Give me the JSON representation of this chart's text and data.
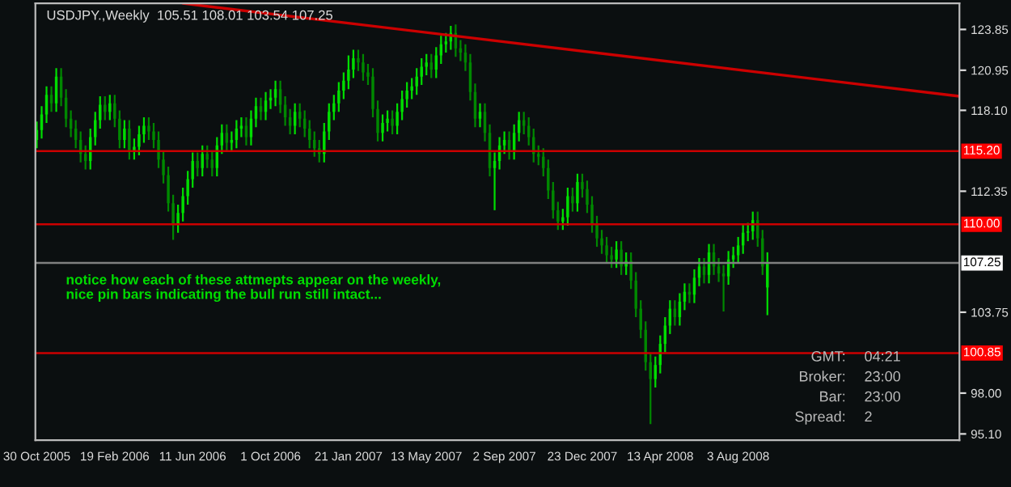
{
  "chart_data": {
    "type": "candlestick",
    "title": "USDJPY.,Weekly  105.51 108.01 103.54 107.25",
    "x": [
      "2005-10-30",
      "2005-11-06",
      "2005-11-13",
      "2005-11-20",
      "2005-11-27",
      "2005-12-04",
      "2005-12-11",
      "2005-12-18",
      "2005-12-25",
      "2006-01-01",
      "2006-01-08",
      "2006-01-15",
      "2006-01-22",
      "2006-01-29",
      "2006-02-05",
      "2006-02-12",
      "2006-02-19",
      "2006-02-26",
      "2006-03-05",
      "2006-03-12",
      "2006-03-19",
      "2006-03-26",
      "2006-04-02",
      "2006-04-09",
      "2006-04-16",
      "2006-04-23",
      "2006-04-30",
      "2006-05-07",
      "2006-05-14",
      "2006-05-21",
      "2006-05-28",
      "2006-06-04",
      "2006-06-11",
      "2006-06-18",
      "2006-06-25",
      "2006-07-02",
      "2006-07-09",
      "2006-07-16",
      "2006-07-23",
      "2006-07-30",
      "2006-08-06",
      "2006-08-13",
      "2006-08-20",
      "2006-08-27",
      "2006-09-03",
      "2006-09-10",
      "2006-09-17",
      "2006-09-24",
      "2006-10-01",
      "2006-10-08",
      "2006-10-15",
      "2006-10-22",
      "2006-10-29",
      "2006-11-05",
      "2006-11-12",
      "2006-11-19",
      "2006-11-26",
      "2006-12-03",
      "2006-12-10",
      "2006-12-17",
      "2006-12-24",
      "2006-12-31",
      "2007-01-07",
      "2007-01-14",
      "2007-01-21",
      "2007-01-28",
      "2007-02-04",
      "2007-02-11",
      "2007-02-18",
      "2007-02-25",
      "2007-03-04",
      "2007-03-11",
      "2007-03-18",
      "2007-03-25",
      "2007-04-01",
      "2007-04-08",
      "2007-04-15",
      "2007-04-22",
      "2007-04-29",
      "2007-05-06",
      "2007-05-13",
      "2007-05-20",
      "2007-05-27",
      "2007-06-03",
      "2007-06-10",
      "2007-06-17",
      "2007-06-24",
      "2007-07-01",
      "2007-07-08",
      "2007-07-15",
      "2007-07-22",
      "2007-07-29",
      "2007-08-05",
      "2007-08-12",
      "2007-08-19",
      "2007-08-26",
      "2007-09-02",
      "2007-09-09",
      "2007-09-16",
      "2007-09-23",
      "2007-09-30",
      "2007-10-07",
      "2007-10-14",
      "2007-10-21",
      "2007-10-28",
      "2007-11-04",
      "2007-11-11",
      "2007-11-18",
      "2007-11-25",
      "2007-12-02",
      "2007-12-09",
      "2007-12-16",
      "2007-12-23",
      "2007-12-30",
      "2008-01-06",
      "2008-01-13",
      "2008-01-20",
      "2008-01-27",
      "2008-02-03",
      "2008-02-10",
      "2008-02-17",
      "2008-02-24",
      "2008-03-02",
      "2008-03-09",
      "2008-03-16",
      "2008-03-23",
      "2008-03-30",
      "2008-04-06",
      "2008-04-13",
      "2008-04-20",
      "2008-04-27",
      "2008-05-04",
      "2008-05-11",
      "2008-05-18",
      "2008-05-25",
      "2008-06-01",
      "2008-06-08",
      "2008-06-15",
      "2008-06-22",
      "2008-06-29",
      "2008-07-06",
      "2008-07-13",
      "2008-07-20",
      "2008-07-27",
      "2008-08-03",
      "2008-08-10",
      "2008-08-17",
      "2008-08-24",
      "2008-08-31",
      "2008-09-07",
      "2008-09-14"
    ],
    "ohlc": [
      [
        116.0,
        117.3,
        115.4,
        116.7
      ],
      [
        116.7,
        118.4,
        116.1,
        117.8
      ],
      [
        117.8,
        119.8,
        117.2,
        119.2
      ],
      [
        119.2,
        119.8,
        118.0,
        118.6
      ],
      [
        118.6,
        121.1,
        118.0,
        120.5
      ],
      [
        120.5,
        121.1,
        118.4,
        119.0
      ],
      [
        119.0,
        119.6,
        116.9,
        117.5
      ],
      [
        117.5,
        118.1,
        116.2,
        116.8
      ],
      [
        116.8,
        117.4,
        115.4,
        116.0
      ],
      [
        116.0,
        116.6,
        114.4,
        115.0
      ],
      [
        115.0,
        115.6,
        113.9,
        114.5
      ],
      [
        114.5,
        116.8,
        113.9,
        116.2
      ],
      [
        116.2,
        118.0,
        115.6,
        117.4
      ],
      [
        117.4,
        119.1,
        116.8,
        118.5
      ],
      [
        118.5,
        119.1,
        117.4,
        118.0
      ],
      [
        118.0,
        119.2,
        117.4,
        118.6
      ],
      [
        118.6,
        119.2,
        116.9,
        117.5
      ],
      [
        117.5,
        118.1,
        115.4,
        116.0
      ],
      [
        116.0,
        117.4,
        115.4,
        116.8
      ],
      [
        116.8,
        117.4,
        114.6,
        115.2
      ],
      [
        115.2,
        116.1,
        114.6,
        115.5
      ],
      [
        115.5,
        117.0,
        114.9,
        116.4
      ],
      [
        116.4,
        117.6,
        115.8,
        117.0
      ],
      [
        117.0,
        117.6,
        116.0,
        116.6
      ],
      [
        116.6,
        117.2,
        115.4,
        116.0
      ],
      [
        116.0,
        116.6,
        114.0,
        114.6
      ],
      [
        114.6,
        115.2,
        112.9,
        113.5
      ],
      [
        113.5,
        114.1,
        110.9,
        111.5
      ],
      [
        111.5,
        112.1,
        108.9,
        110.0
      ],
      [
        110.0,
        111.4,
        109.4,
        110.8
      ],
      [
        110.8,
        112.6,
        110.2,
        112.0
      ],
      [
        112.0,
        113.8,
        111.4,
        113.2
      ],
      [
        113.2,
        115.1,
        112.6,
        114.5
      ],
      [
        114.5,
        115.1,
        113.4,
        114.0
      ],
      [
        114.0,
        115.6,
        113.4,
        115.0
      ],
      [
        115.0,
        115.6,
        114.0,
        114.6
      ],
      [
        114.6,
        115.2,
        113.4,
        114.0
      ],
      [
        114.0,
        116.2,
        113.4,
        115.6
      ],
      [
        115.6,
        117.1,
        115.0,
        116.5
      ],
      [
        116.5,
        117.1,
        115.2,
        115.8
      ],
      [
        115.8,
        116.6,
        115.2,
        116.0
      ],
      [
        116.0,
        117.4,
        115.4,
        116.8
      ],
      [
        116.8,
        117.6,
        116.2,
        117.0
      ],
      [
        117.0,
        117.6,
        115.6,
        116.2
      ],
      [
        116.2,
        118.1,
        115.6,
        117.5
      ],
      [
        117.5,
        119.0,
        116.9,
        118.4
      ],
      [
        118.4,
        119.0,
        117.4,
        118.0
      ],
      [
        118.0,
        119.4,
        117.4,
        118.8
      ],
      [
        118.8,
        119.6,
        118.2,
        119.0
      ],
      [
        119.0,
        120.2,
        118.4,
        119.6
      ],
      [
        119.6,
        120.2,
        117.9,
        118.5
      ],
      [
        118.5,
        119.1,
        117.0,
        117.6
      ],
      [
        117.6,
        118.2,
        116.4,
        117.0
      ],
      [
        117.0,
        118.6,
        116.4,
        118.0
      ],
      [
        118.0,
        118.6,
        116.9,
        117.5
      ],
      [
        117.5,
        118.1,
        116.2,
        116.8
      ],
      [
        116.8,
        117.4,
        115.4,
        116.0
      ],
      [
        116.0,
        116.6,
        114.8,
        115.4
      ],
      [
        115.4,
        116.0,
        114.4,
        115.0
      ],
      [
        115.0,
        117.2,
        114.4,
        116.6
      ],
      [
        116.6,
        118.6,
        116.0,
        118.0
      ],
      [
        118.0,
        119.2,
        117.4,
        118.6
      ],
      [
        118.6,
        120.1,
        118.0,
        119.5
      ],
      [
        119.5,
        120.8,
        118.9,
        120.2
      ],
      [
        120.2,
        122.0,
        119.6,
        121.0
      ],
      [
        121.0,
        122.4,
        120.4,
        121.8
      ],
      [
        121.8,
        122.4,
        120.9,
        121.5
      ],
      [
        121.5,
        122.1,
        120.2,
        120.8
      ],
      [
        120.8,
        121.4,
        119.9,
        120.5
      ],
      [
        120.5,
        121.1,
        117.6,
        118.2
      ],
      [
        118.2,
        118.8,
        115.9,
        116.5
      ],
      [
        116.5,
        117.8,
        115.9,
        117.2
      ],
      [
        117.2,
        118.1,
        116.6,
        117.5
      ],
      [
        117.5,
        118.1,
        116.4,
        117.0
      ],
      [
        117.0,
        118.6,
        116.4,
        118.0
      ],
      [
        118.0,
        119.5,
        117.4,
        118.9
      ],
      [
        118.9,
        120.1,
        118.3,
        119.5
      ],
      [
        119.5,
        120.4,
        118.9,
        119.8
      ],
      [
        119.8,
        121.1,
        119.2,
        120.5
      ],
      [
        120.5,
        121.8,
        119.9,
        121.2
      ],
      [
        121.2,
        122.1,
        120.6,
        121.5
      ],
      [
        121.5,
        122.1,
        120.4,
        121.0
      ],
      [
        121.0,
        122.6,
        120.4,
        122.0
      ],
      [
        122.0,
        123.4,
        121.4,
        122.8
      ],
      [
        122.8,
        123.6,
        122.2,
        123.0
      ],
      [
        123.0,
        124.1,
        122.4,
        123.6
      ],
      [
        123.6,
        124.2,
        121.9,
        122.5
      ],
      [
        122.5,
        123.1,
        121.6,
        122.2
      ],
      [
        122.2,
        122.8,
        120.9,
        121.5
      ],
      [
        121.5,
        122.1,
        118.8,
        119.4
      ],
      [
        119.4,
        120.0,
        116.9,
        117.5
      ],
      [
        117.5,
        118.6,
        116.9,
        118.0
      ],
      [
        118.0,
        118.6,
        115.9,
        116.5
      ],
      [
        116.5,
        117.1,
        113.4,
        114.0
      ],
      [
        114.0,
        115.1,
        111.0,
        114.5
      ],
      [
        114.5,
        116.2,
        113.9,
        115.6
      ],
      [
        115.6,
        116.6,
        115.0,
        116.0
      ],
      [
        116.0,
        116.6,
        114.6,
        115.2
      ],
      [
        115.2,
        117.1,
        114.6,
        116.5
      ],
      [
        116.5,
        118.0,
        115.9,
        117.4
      ],
      [
        117.4,
        118.0,
        116.4,
        117.0
      ],
      [
        117.0,
        117.6,
        115.6,
        116.2
      ],
      [
        116.2,
        116.8,
        114.4,
        115.0
      ],
      [
        115.0,
        115.6,
        114.2,
        114.8
      ],
      [
        114.8,
        115.4,
        113.4,
        114.0
      ],
      [
        114.0,
        114.6,
        111.8,
        112.4
      ],
      [
        112.4,
        113.0,
        110.4,
        111.0
      ],
      [
        111.0,
        111.6,
        109.6,
        110.2
      ],
      [
        110.2,
        111.1,
        109.6,
        110.5
      ],
      [
        110.5,
        112.6,
        109.9,
        112.0
      ],
      [
        112.0,
        112.6,
        110.9,
        111.5
      ],
      [
        111.5,
        113.6,
        110.9,
        113.0
      ],
      [
        113.0,
        113.6,
        111.9,
        112.5
      ],
      [
        112.5,
        113.1,
        110.8,
        111.4
      ],
      [
        111.4,
        112.0,
        109.4,
        110.0
      ],
      [
        110.0,
        110.6,
        108.4,
        109.0
      ],
      [
        109.0,
        109.6,
        107.9,
        108.5
      ],
      [
        108.5,
        109.1,
        107.2,
        107.8
      ],
      [
        107.8,
        108.4,
        106.9,
        107.5
      ],
      [
        107.5,
        108.8,
        106.9,
        108.2
      ],
      [
        108.2,
        108.8,
        106.4,
        107.0
      ],
      [
        107.0,
        108.0,
        106.4,
        107.4
      ],
      [
        107.4,
        108.0,
        105.4,
        106.0
      ],
      [
        106.0,
        106.6,
        103.4,
        104.0
      ],
      [
        104.0,
        104.6,
        101.9,
        102.5
      ],
      [
        102.5,
        103.1,
        99.6,
        100.2
      ],
      [
        100.2,
        100.8,
        95.8,
        99.0
      ],
      [
        99.0,
        100.6,
        98.4,
        100.0
      ],
      [
        100.0,
        102.1,
        99.4,
        101.5
      ],
      [
        101.5,
        103.4,
        100.9,
        102.8
      ],
      [
        102.8,
        104.6,
        102.2,
        104.0
      ],
      [
        104.0,
        104.6,
        102.8,
        103.4
      ],
      [
        103.4,
        105.1,
        102.8,
        104.5
      ],
      [
        104.5,
        105.8,
        103.9,
        105.2
      ],
      [
        105.2,
        105.8,
        104.4,
        105.0
      ],
      [
        105.0,
        106.8,
        104.4,
        106.2
      ],
      [
        106.2,
        107.6,
        105.6,
        107.0
      ],
      [
        107.0,
        107.6,
        105.8,
        106.4
      ],
      [
        106.4,
        108.6,
        105.8,
        108.0
      ],
      [
        108.0,
        108.6,
        106.4,
        107.0
      ],
      [
        107.0,
        107.6,
        105.9,
        106.5
      ],
      [
        106.5,
        107.1,
        103.8,
        106.3
      ],
      [
        106.3,
        108.1,
        105.7,
        107.5
      ],
      [
        107.5,
        108.4,
        106.9,
        107.8
      ],
      [
        107.8,
        109.1,
        107.2,
        108.5
      ],
      [
        108.5,
        110.0,
        107.9,
        109.4
      ],
      [
        109.4,
        110.1,
        108.8,
        109.5
      ],
      [
        109.5,
        110.9,
        108.9,
        110.3
      ],
      [
        110.3,
        110.9,
        108.4,
        109.0
      ],
      [
        109.0,
        109.6,
        106.4,
        107.0
      ],
      [
        105.51,
        108.01,
        103.54,
        107.25
      ]
    ],
    "colors": [
      "#00dd00",
      "#00dd00",
      "#00dd00",
      "#008800",
      "#00dd00",
      "#008800",
      "#008800",
      "#008800",
      "#008800",
      "#008800",
      "#008800",
      "#00dd00",
      "#00dd00",
      "#00dd00",
      "#008800",
      "#00dd00",
      "#008800",
      "#008800",
      "#00dd00",
      "#008800",
      "#00dd00",
      "#00dd00",
      "#00dd00",
      "#008800",
      "#008800",
      "#008800",
      "#008800",
      "#008800",
      "#008800",
      "#00dd00",
      "#00dd00",
      "#00dd00",
      "#00dd00",
      "#008800",
      "#00dd00",
      "#008800",
      "#008800",
      "#00dd00",
      "#00dd00",
      "#008800",
      "#00dd00",
      "#00dd00",
      "#00dd00",
      "#008800",
      "#00dd00",
      "#00dd00",
      "#008800",
      "#00dd00",
      "#00dd00",
      "#00dd00",
      "#008800",
      "#008800",
      "#008800",
      "#00dd00",
      "#008800",
      "#008800",
      "#008800",
      "#008800",
      "#008800",
      "#00dd00",
      "#00dd00",
      "#00dd00",
      "#00dd00",
      "#00dd00",
      "#00dd00",
      "#00dd00",
      "#008800",
      "#008800",
      "#008800",
      "#008800",
      "#008800",
      "#00dd00",
      "#00dd00",
      "#008800",
      "#00dd00",
      "#00dd00",
      "#00dd00",
      "#00dd00",
      "#00dd00",
      "#00dd00",
      "#00dd00",
      "#008800",
      "#00dd00",
      "#00dd00",
      "#00dd00",
      "#00dd00",
      "#008800",
      "#008800",
      "#008800",
      "#008800",
      "#008800",
      "#00dd00",
      "#008800",
      "#008800",
      "#00dd00",
      "#00dd00",
      "#00dd00",
      "#008800",
      "#00dd00",
      "#00dd00",
      "#008800",
      "#008800",
      "#008800",
      "#008800",
      "#008800",
      "#008800",
      "#008800",
      "#008800",
      "#00dd00",
      "#00dd00",
      "#008800",
      "#00dd00",
      "#008800",
      "#008800",
      "#008800",
      "#008800",
      "#008800",
      "#008800",
      "#008800",
      "#00dd00",
      "#008800",
      "#00dd00",
      "#008800",
      "#008800",
      "#008800",
      "#008800",
      "#008800",
      "#00dd00",
      "#00dd00",
      "#00dd00",
      "#00dd00",
      "#008800",
      "#00dd00",
      "#00dd00",
      "#008800",
      "#00dd00",
      "#00dd00",
      "#008800",
      "#00dd00",
      "#008800",
      "#008800",
      "#008800",
      "#00dd00",
      "#00dd00",
      "#00dd00",
      "#00dd00",
      "#00dd00",
      "#00dd00",
      "#008800",
      "#008800",
      "#00dd00"
    ],
    "series": [
      {
        "type": "line",
        "color": "#cc0000",
        "x": [
          "2006-05-28",
          "2009-06-17"
        ],
        "values": [
          125.7,
          119.1
        ]
      }
    ],
    "xlim": [
      "2005-10-28",
      "2009-06-17"
    ],
    "xticks": [
      {
        "value": "2005-10-30",
        "label": "30 Oct 2005"
      },
      {
        "value": "2006-02-19",
        "label": "19 Feb 2006"
      },
      {
        "value": "2006-06-11",
        "label": "11 Jun 2006"
      },
      {
        "value": "2006-10-01",
        "label": "1 Oct 2006"
      },
      {
        "value": "2007-01-21",
        "label": "21 Jan 2007"
      },
      {
        "value": "2007-05-13",
        "label": "13 May 2007"
      },
      {
        "value": "2007-09-02",
        "label": "2 Sep 2007"
      },
      {
        "value": "2007-12-23",
        "label": "23 Dec 2007"
      },
      {
        "value": "2008-04-13",
        "label": "13 Apr 2008"
      },
      {
        "value": "2008-08-03",
        "label": "3 Aug 2008"
      }
    ],
    "ylim": [
      94.65,
      125.7
    ],
    "yticks": [
      {
        "value": 123.85,
        "label": "123.85"
      },
      {
        "value": 120.95,
        "label": "120.95"
      },
      {
        "value": 118.1,
        "label": "118.10"
      },
      {
        "value": 112.35,
        "label": "112.35"
      },
      {
        "value": 103.75,
        "label": "103.75"
      },
      {
        "value": 98.0,
        "label": "98.00"
      },
      {
        "value": 95.1,
        "label": "95.10"
      }
    ],
    "ref_lines": [
      {
        "axis": "y",
        "value": 115.2,
        "label": "115.20",
        "color": "#cc0000"
      },
      {
        "axis": "y",
        "value": 110.0,
        "label": "110.00",
        "color": "#cc0000"
      },
      {
        "axis": "y",
        "value": 100.85,
        "label": "100.85",
        "color": "#cc0000"
      },
      {
        "axis": "y",
        "value": 107.25,
        "label": "107.25",
        "color": "#808080"
      }
    ],
    "annotations": [
      "notice how each of these attmepts appear on the weekly, nice pin bars indicating the bull run still intact...",
      "GMT:",
      "04:21",
      "Broker:",
      "23:00",
      "Bar:",
      "23:00",
      "Spread:",
      "2"
    ],
    "grid": false
  }
}
